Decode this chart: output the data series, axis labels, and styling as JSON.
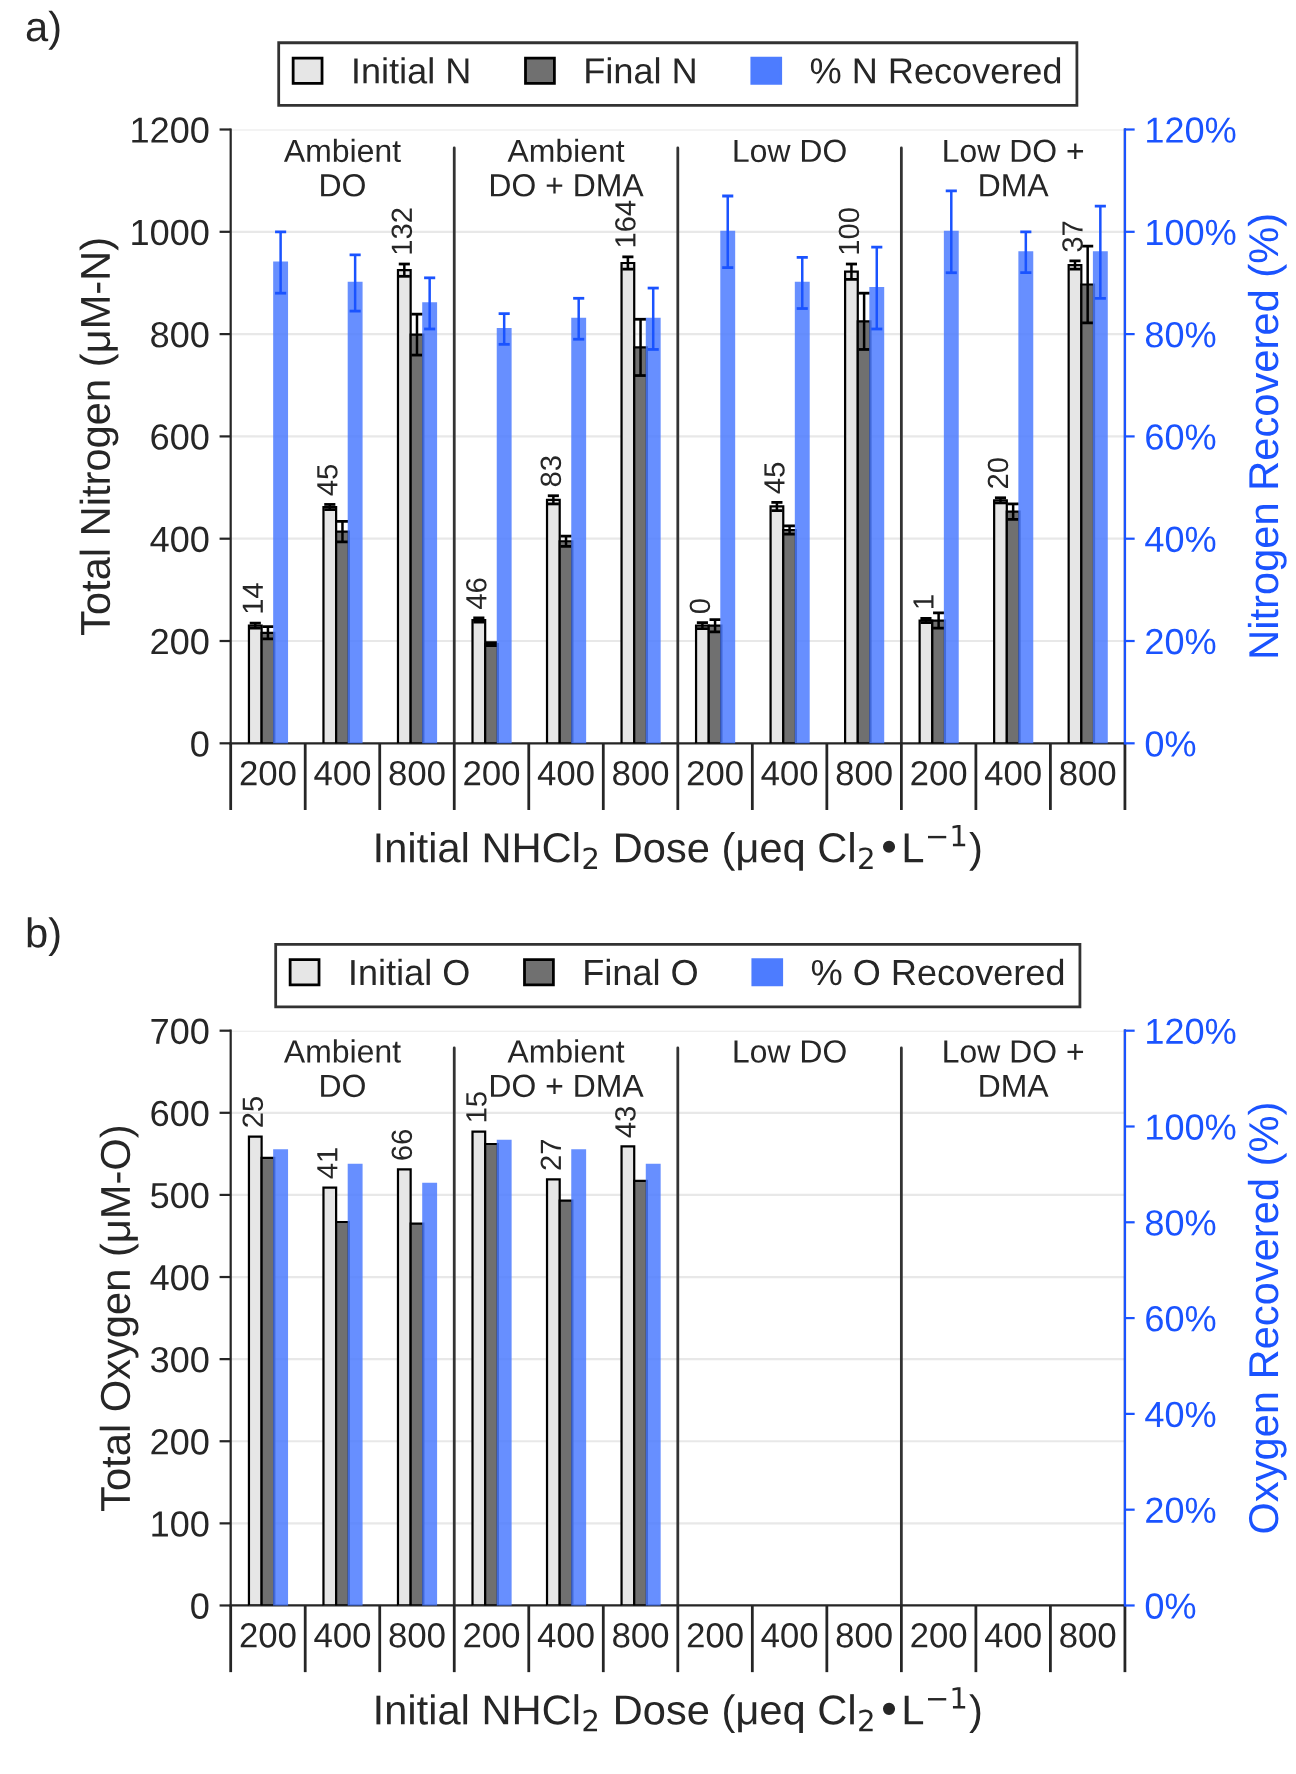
{
  "chart_data": [
    {
      "type": "bar",
      "title": "a)",
      "xlabel": "Initial NHCl$_{2}$ Dose (μeq Cl$_{2}$•L$^{−1}$)",
      "ylabel": "Total Nitrogen (μM-N)",
      "y2label": "Nitrogen Recovered (%)",
      "categories": [
        "200",
        "400",
        "800",
        "200",
        "400",
        "800",
        "200",
        "400",
        "800",
        "200",
        "400",
        "800"
      ],
      "annotations": [
        "Ambient\nDO",
        "Ambient\nDO + DMA",
        "Low DO",
        "Low DO +\nDMA",
        {
          "text": "14",
          "y": 235
        },
        {
          "text": "45",
          "y": 467
        },
        {
          "text": "132",
          "y": 937
        },
        {
          "text": "46",
          "y": 245
        },
        {
          "text": "83",
          "y": 484
        },
        {
          "text": "164",
          "y": 951
        },
        {
          "text": "0",
          "y": 236
        },
        {
          "text": "45",
          "y": 471
        },
        {
          "text": "100",
          "y": 937
        },
        {
          "text": "1",
          "y": 244
        },
        {
          "text": "20",
          "y": 480
        },
        {
          "text": "37",
          "y": 943
        }
      ],
      "series": [
        {
          "name": "Initial N",
          "color": "#e6e6e6",
          "values": [
            230,
            462,
            925,
            241,
            476,
            939,
            230,
            463,
            922,
            240,
            475,
            935
          ],
          "errors": [
            5,
            5,
            12,
            4,
            8,
            12,
            6,
            8,
            15,
            4,
            5,
            8
          ]
        },
        {
          "name": "Final N",
          "color": "#707070",
          "values": [
            216,
            414,
            799,
            194,
            395,
            774,
            230,
            417,
            825,
            240,
            453,
            897
          ],
          "errors": [
            12,
            20,
            40,
            3,
            10,
            55,
            12,
            8,
            55,
            15,
            15,
            75
          ]
        },
        {
          "name": "% N Recovered",
          "color": "#4d7cff",
          "axis": "y2",
          "values": [
            94,
            90,
            86,
            81,
            83,
            83,
            100,
            90,
            89,
            100,
            96,
            96
          ],
          "errors": [
            6,
            5.5,
            5,
            3,
            4,
            6,
            7,
            5,
            8,
            8,
            4,
            9
          ]
        }
      ],
      "ylim": [
        0,
        1200
      ],
      "yticks": [
        0,
        200,
        400,
        600,
        800,
        1000,
        1200
      ],
      "y2lim": [
        0,
        120
      ],
      "y2ticks": [
        {
          "value": 0,
          "label": "0%"
        },
        {
          "value": 20,
          "label": "20%"
        },
        {
          "value": 40,
          "label": "40%"
        },
        {
          "value": 60,
          "label": "60%"
        },
        {
          "value": 80,
          "label": "80%"
        },
        {
          "value": 100,
          "label": "100%"
        },
        {
          "value": 120,
          "label": "120%"
        }
      ],
      "grid": "y",
      "legend": "top"
    },
    {
      "type": "bar",
      "title": "b)",
      "xlabel": "Initial NHCl$_{2}$ Dose (μeq Cl$_{2}$•L$^{−1}$)",
      "ylabel": "Total Oxygen (μM-O)",
      "y2label": "Oxygen Recovered (%)",
      "categories": [
        "200",
        "400",
        "800",
        "200",
        "400",
        "800",
        "200",
        "400",
        "800",
        "200",
        "400",
        "800"
      ],
      "annotations": [
        "Ambient\nDO",
        "Ambient\nDO + DMA",
        "Low DO",
        "Low DO +\nDMA",
        {
          "text": "25",
          "y": 571
        },
        {
          "text": "41",
          "y": 509
        },
        {
          "text": "66",
          "y": 531
        },
        {
          "text": "15",
          "y": 577
        },
        {
          "text": "27",
          "y": 519
        },
        {
          "text": "43",
          "y": 559
        }
      ],
      "series": [
        {
          "name": "Initial O",
          "color": "#e6e6e6",
          "values": [
            571,
            509,
            531,
            577,
            519,
            559,
            null,
            null,
            null,
            null,
            null,
            null
          ]
        },
        {
          "name": "Final O",
          "color": "#707070",
          "values": [
            545,
            467,
            465,
            562,
            493,
            517,
            null,
            null,
            null,
            null,
            null,
            null
          ]
        },
        {
          "name": "% O Recovered",
          "color": "#4d7cff",
          "axis": "y2",
          "values": [
            95,
            92,
            88,
            97,
            95,
            92,
            null,
            null,
            null,
            null,
            null,
            null
          ]
        }
      ],
      "ylim": [
        0,
        700
      ],
      "yticks": [
        0,
        100,
        200,
        300,
        400,
        500,
        600,
        700
      ],
      "y2lim": [
        0,
        120
      ],
      "y2ticks": [
        {
          "value": 0,
          "label": "0%"
        },
        {
          "value": 20,
          "label": "20%"
        },
        {
          "value": 40,
          "label": "40%"
        },
        {
          "value": 60,
          "label": "60%"
        },
        {
          "value": 80,
          "label": "80%"
        },
        {
          "value": 100,
          "label": "100%"
        },
        {
          "value": 120,
          "label": "120%"
        }
      ],
      "grid": "y",
      "legend": "top"
    }
  ]
}
